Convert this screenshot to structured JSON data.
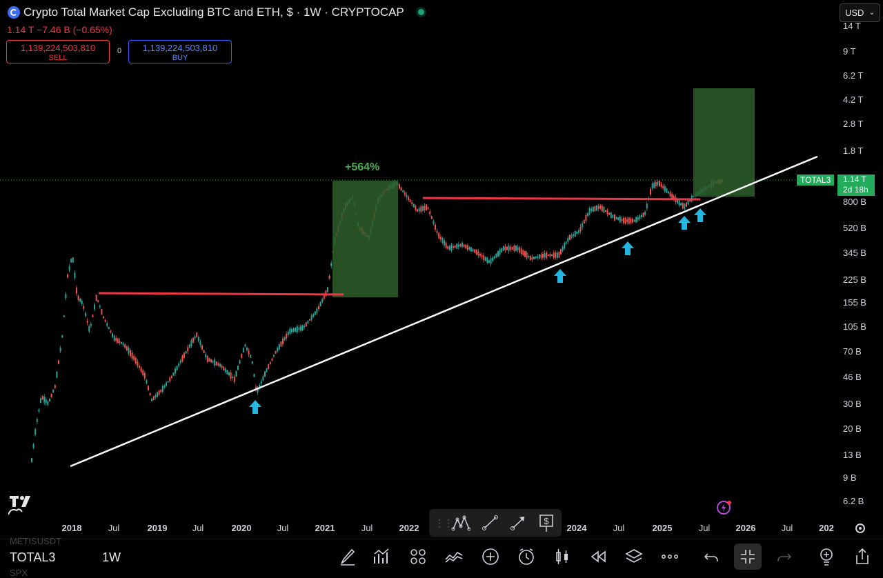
{
  "header": {
    "title": "Crypto Total Market Cap Excluding BTC and ETH, $ · 1W · CRYPTOCAP",
    "price_change": "1.14 T  −7.46 B (−0.65%)",
    "sell_value": "1,139,224,503,810",
    "sell_label": "SELL",
    "spread": "0",
    "buy_value": "1,139,224,503,810",
    "buy_label": "BUY",
    "currency": "USD",
    "market_status_color": "#1fa37a"
  },
  "chart": {
    "y_ticks": [
      "14 T",
      "9 T",
      "6.2 T",
      "4.2 T",
      "2.8 T",
      "1.8 T",
      "800 B",
      "520 B",
      "345 B",
      "225 B",
      "155 B",
      "105 B",
      "70 B",
      "46 B",
      "30 B",
      "20 B",
      "13 B",
      "9 B",
      "6.2 B"
    ],
    "x_ticks": [
      {
        "label": "2018",
        "bold": true
      },
      {
        "label": "Jul",
        "bold": false
      },
      {
        "label": "2019",
        "bold": true
      },
      {
        "label": "Jul",
        "bold": false
      },
      {
        "label": "2020",
        "bold": true
      },
      {
        "label": "Jul",
        "bold": false
      },
      {
        "label": "2021",
        "bold": true
      },
      {
        "label": "Jul",
        "bold": false
      },
      {
        "label": "2022",
        "bold": true
      },
      {
        "label": "2024",
        "bold": true
      },
      {
        "label": "Jul",
        "bold": false
      },
      {
        "label": "2025",
        "bold": true
      },
      {
        "label": "Jul",
        "bold": false
      },
      {
        "label": "2026",
        "bold": true
      },
      {
        "label": "Jul",
        "bold": false
      },
      {
        "label": "202",
        "bold": true
      }
    ],
    "symbol_tag": "TOTAL3",
    "last_price": "1.14 T",
    "countdown": "2d 18h",
    "move_label": "+564%",
    "colors": {
      "up": "#26a69a",
      "down": "#ef5350",
      "level": "#f23645",
      "trend": "#ffffff",
      "box": "#2e5e2c",
      "arrow": "#22b6e0"
    }
  },
  "toolbar": {
    "tools": [
      "drag-handle",
      "elliott-wave-tool",
      "trend-line-tool",
      "arrow-line-tool",
      "price-note-tool"
    ]
  },
  "bottom": {
    "symbol": "TOTAL3",
    "timeframe": "1W",
    "ghost_top": "METISUSDT",
    "ghost_bottom": "SPX",
    "icons": [
      "brush-icon",
      "chart-type-icon",
      "layout-grid-icon",
      "indicators-icon",
      "add-icon",
      "alert-clock-icon",
      "candles-icon",
      "replay-icon",
      "layers-icon",
      "more-icon",
      "undo-icon",
      "collapse-icon",
      "redo-icon",
      "bulb-add-icon",
      "share-icon"
    ]
  }
}
